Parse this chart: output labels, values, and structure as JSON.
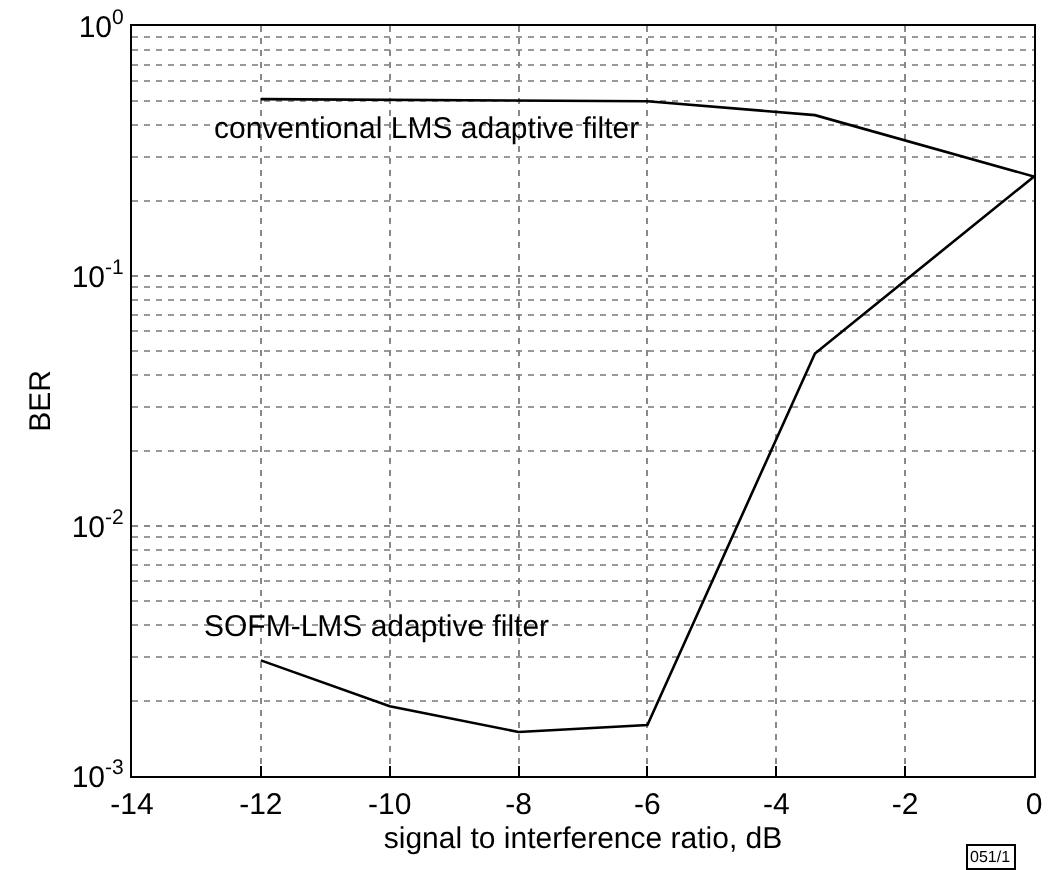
{
  "chart_data": {
    "type": "line",
    "xlabel": "signal to interference ratio, dB",
    "ylabel": "BER",
    "series": [
      {
        "name": "conventional LMS adaptive filter",
        "color": "#000000",
        "x": [
          -12,
          -6,
          -3.4,
          0
        ],
        "values": [
          0.51,
          0.5,
          0.44,
          0.25
        ]
      },
      {
        "name": "SOFM-LMS adaptive filter",
        "color": "#000000",
        "x": [
          -12,
          -10,
          -8,
          -6,
          -3.4,
          0
        ],
        "values": [
          0.0029,
          0.0019,
          0.0015,
          0.0016,
          0.049,
          0.25
        ]
      }
    ],
    "xlim": [
      -14,
      0
    ],
    "xticks": [
      -14,
      -12,
      -10,
      -8,
      -6,
      -4,
      -2,
      0
    ],
    "ylim": [
      0.001,
      1
    ],
    "yticks": [
      {
        "value": 0.001,
        "label": "10$^{-3}$"
      },
      {
        "value": 0.01,
        "label": "10$^{-2}$"
      },
      {
        "value": 0.1,
        "label": "10$^{-1}$"
      },
      {
        "value": 1,
        "label": "10$^{0}$"
      }
    ],
    "log": "y",
    "grid": true,
    "legend": false,
    "marker": "none",
    "line_style": "solid",
    "annotations": [
      "051/1"
    ]
  }
}
